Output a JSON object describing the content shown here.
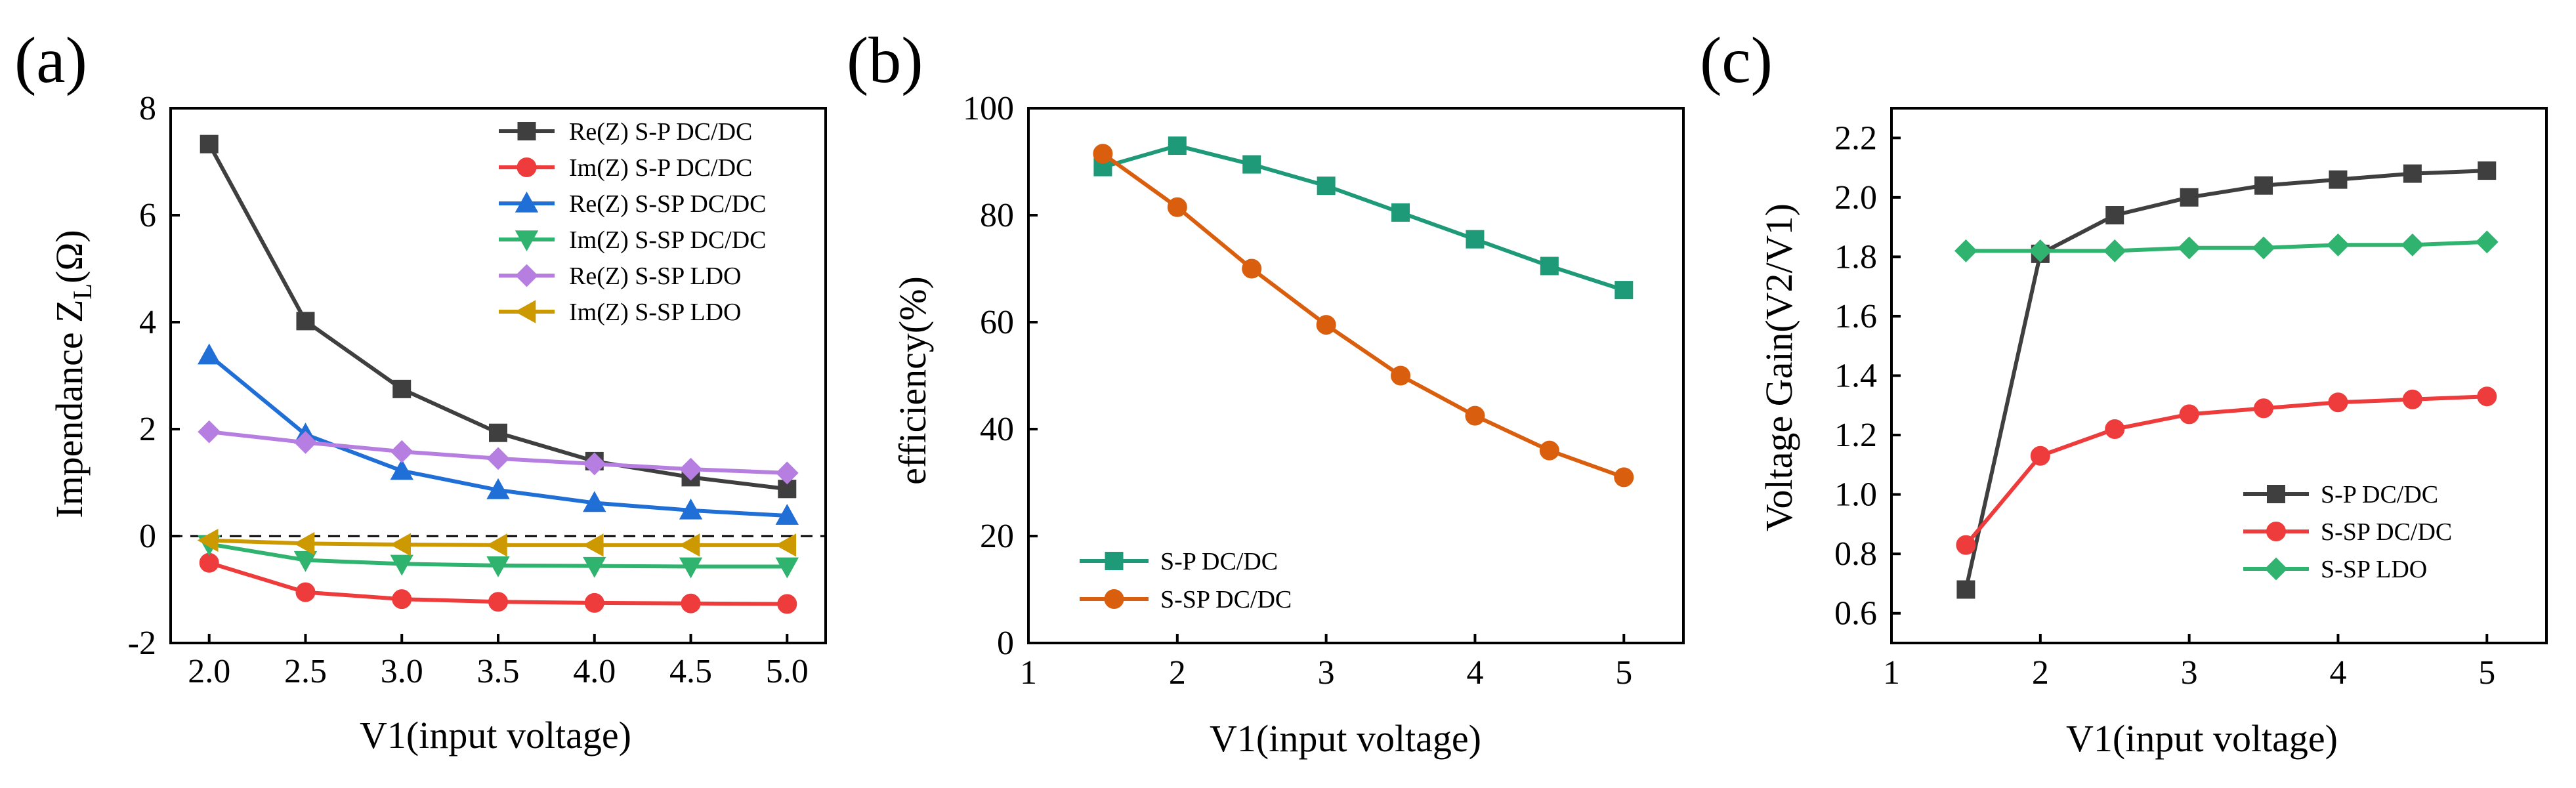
{
  "chart_data": [
    {
      "type": "line",
      "panel_label": "(a)",
      "title": "",
      "xlabel": "V1(input voltage)",
      "ylabel_main": "Impendance Z",
      "ylabel_sub": "L",
      "ylabel_unit": "(Ω)",
      "xlim": [
        1.8,
        5.2
      ],
      "ylim": [
        -2,
        8
      ],
      "xticks": [
        2.0,
        2.5,
        3.0,
        3.5,
        4.0,
        4.5,
        5.0
      ],
      "xtick_labels": [
        "2.0",
        "2.5",
        "3.0",
        "3.5",
        "4.0",
        "4.5",
        "5.0"
      ],
      "yticks": [
        -2,
        0,
        2,
        4,
        6,
        8
      ],
      "ytick_labels": [
        "-2",
        "0",
        "2",
        "4",
        "6",
        "8"
      ],
      "reference_line_y": 0,
      "legend_position": "top-right",
      "x": [
        2.0,
        2.5,
        3.0,
        3.5,
        4.0,
        4.5,
        5.0
      ],
      "series": [
        {
          "name": "Re(Z) S-P DC/DC",
          "color": "#3f3f3f",
          "marker": "square",
          "values": [
            7.33,
            4.02,
            2.75,
            1.93,
            1.4,
            1.1,
            0.88
          ]
        },
        {
          "name": "Im(Z) S-P DC/DC",
          "color": "#ee3b3b",
          "marker": "circle",
          "values": [
            -0.5,
            -1.05,
            -1.18,
            -1.23,
            -1.25,
            -1.26,
            -1.27
          ]
        },
        {
          "name": "Re(Z) S-SP DC/DC",
          "color": "#1f6fd6",
          "marker": "triangle-up",
          "values": [
            3.38,
            1.9,
            1.22,
            0.86,
            0.62,
            0.48,
            0.38
          ]
        },
        {
          "name": "Im(Z) S-SP DC/DC",
          "color": "#2fb36f",
          "marker": "triangle-down",
          "values": [
            -0.15,
            -0.45,
            -0.52,
            -0.55,
            -0.56,
            -0.57,
            -0.57
          ]
        },
        {
          "name": "Re(Z) S-SP LDO",
          "color": "#b57ee0",
          "marker": "diamond",
          "values": [
            1.95,
            1.75,
            1.58,
            1.45,
            1.35,
            1.25,
            1.18
          ]
        },
        {
          "name": "Im(Z) S-SP LDO",
          "color": "#cc9a00",
          "marker": "triangle-left",
          "values": [
            -0.08,
            -0.14,
            -0.16,
            -0.17,
            -0.17,
            -0.17,
            -0.17
          ]
        }
      ]
    },
    {
      "type": "line",
      "panel_label": "(b)",
      "title": "",
      "xlabel": "V1(input voltage)",
      "ylabel": "efficiency(%)",
      "xlim": [
        1,
        5.4
      ],
      "ylim": [
        0,
        100
      ],
      "xticks": [
        1,
        2,
        3,
        4,
        5
      ],
      "xtick_labels": [
        "1",
        "2",
        "3",
        "4",
        "5"
      ],
      "yticks": [
        0,
        20,
        40,
        60,
        80,
        100
      ],
      "ytick_labels": [
        "0",
        "20",
        "40",
        "60",
        "80",
        "100"
      ],
      "legend_position": "bottom-left",
      "series": [
        {
          "name": "S-P DC/DC",
          "color": "#1e9a78",
          "marker": "square",
          "x": [
            1.5,
            2.0,
            2.5,
            3.0,
            3.5,
            4.0,
            4.5,
            5.0
          ],
          "values": [
            89.0,
            93.0,
            89.5,
            85.5,
            80.5,
            75.5,
            70.5,
            66.0
          ]
        },
        {
          "name": "S-SP DC/DC",
          "color": "#d95f0e",
          "marker": "circle",
          "x": [
            1.5,
            2.0,
            2.5,
            3.0,
            3.5,
            4.0,
            4.5,
            5.0
          ],
          "values": [
            91.5,
            81.5,
            70.0,
            59.5,
            50.0,
            42.5,
            36.0,
            31.0
          ]
        }
      ]
    },
    {
      "type": "line",
      "panel_label": "(c)",
      "title": "",
      "xlabel": "V1(input voltage)",
      "ylabel": "Voltage Gain(V2/V1)",
      "xlim": [
        1,
        5.4
      ],
      "ylim": [
        0.5,
        2.3
      ],
      "xticks": [
        1,
        2,
        3,
        4,
        5
      ],
      "xtick_labels": [
        "1",
        "2",
        "3",
        "4",
        "5"
      ],
      "yticks": [
        0.6,
        0.8,
        1.0,
        1.2,
        1.4,
        1.6,
        1.8,
        2.0,
        2.2
      ],
      "ytick_labels": [
        "0.6",
        "0.8",
        "1.0",
        "1.2",
        "1.4",
        "1.6",
        "1.8",
        "2.0",
        "2.2"
      ],
      "legend_position": "center-right",
      "series": [
        {
          "name": "S-P DC/DC",
          "color": "#3f3f3f",
          "marker": "square",
          "x": [
            1.5,
            2.0,
            2.5,
            3.0,
            3.5,
            4.0,
            4.5,
            5.0
          ],
          "values": [
            0.68,
            1.81,
            1.94,
            2.0,
            2.04,
            2.06,
            2.08,
            2.09
          ]
        },
        {
          "name": "S-SP DC/DC",
          "color": "#ee3b3b",
          "marker": "circle",
          "x": [
            1.5,
            2.0,
            2.5,
            3.0,
            3.5,
            4.0,
            4.5,
            5.0
          ],
          "values": [
            0.83,
            1.13,
            1.22,
            1.27,
            1.29,
            1.31,
            1.32,
            1.33
          ]
        },
        {
          "name": "S-SP LDO",
          "color": "#2fb36f",
          "marker": "diamond",
          "x": [
            1.5,
            2.0,
            2.5,
            3.0,
            3.5,
            4.0,
            4.5,
            5.0
          ],
          "values": [
            1.82,
            1.82,
            1.82,
            1.83,
            1.83,
            1.84,
            1.84,
            1.85
          ]
        }
      ]
    }
  ]
}
